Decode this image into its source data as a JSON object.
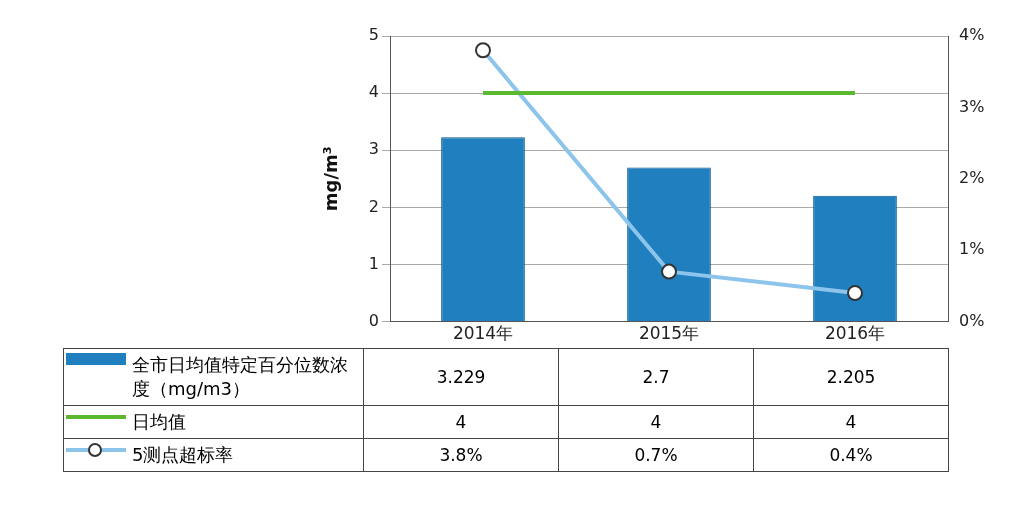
{
  "chart_data": {
    "type": "bar",
    "ylabel": "mg/m³",
    "categories": [
      "2014年",
      "2015年",
      "2016年"
    ],
    "series": [
      {
        "name": "全市日均值特定百分位数浓度（mg/m3）",
        "color": "#1f7fbf",
        "values": [
          3.229,
          2.7,
          2.205
        ],
        "value_labels": [
          "3.229",
          "2.7",
          "2.205"
        ]
      },
      {
        "name": "日均值",
        "type": "line",
        "color": "#5cb82e",
        "values": [
          4,
          4,
          4
        ],
        "marker": "none",
        "value_labels": [
          "4",
          "4",
          "4"
        ]
      },
      {
        "name": "5测点超标率",
        "type": "line",
        "axis": "y2",
        "color": "#8cc4ec",
        "values": [
          3.8,
          0.7,
          0.4
        ],
        "marker": "circle",
        "value_labels": [
          "3.8%",
          "0.7%",
          "0.4%"
        ]
      }
    ],
    "ylim": [
      0,
      5
    ],
    "yticks": [
      0,
      1,
      2,
      3,
      4,
      5
    ],
    "y2lim": [
      0,
      4
    ],
    "y2ticks": [
      {
        "value": 0,
        "label": "0%"
      },
      {
        "value": 1,
        "label": "1%"
      },
      {
        "value": 2,
        "label": "2%"
      },
      {
        "value": 3,
        "label": "3%"
      },
      {
        "value": 4,
        "label": "4%"
      }
    ],
    "grid": "y",
    "legend": "bottom"
  }
}
